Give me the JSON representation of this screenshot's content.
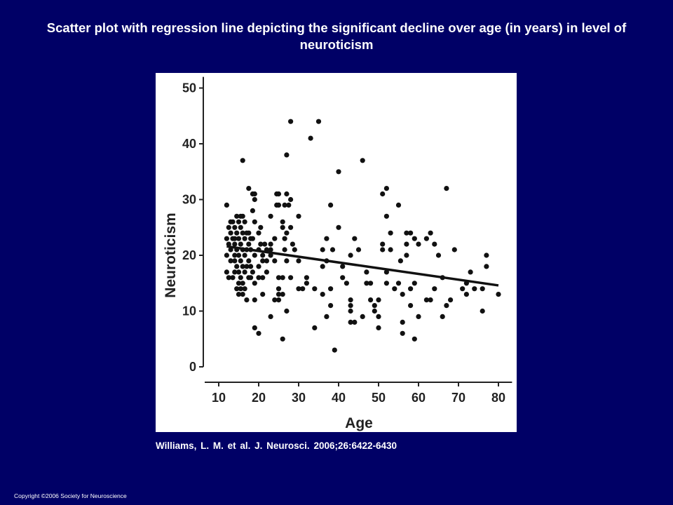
{
  "slide": {
    "title": "Scatter plot with regression line depicting the significant decline over age (in years) in level of neuroticism",
    "citation": "Williams, L. M. et al. J. Neurosci. 2006;26:6422-6430",
    "copyright": "Copyright ©2006 Society for Neuroscience"
  },
  "colors": {
    "background": "#000066",
    "panel": "#ffffff",
    "points": "#111111"
  },
  "chart_data": {
    "type": "scatter",
    "title": "",
    "xlabel": "Age",
    "ylabel": "Neuroticism",
    "xlim": [
      10,
      82
    ],
    "ylim": [
      0,
      52
    ],
    "xticks": [
      10,
      20,
      30,
      40,
      50,
      60,
      70,
      80
    ],
    "yticks": [
      0,
      10,
      20,
      30,
      40,
      50
    ],
    "grid": false,
    "legend": "none",
    "regression_line": {
      "x": [
        12,
        80
      ],
      "y": [
        21.6,
        14.6
      ]
    },
    "points": [
      [
        12,
        29
      ],
      [
        12,
        23
      ],
      [
        12,
        20
      ],
      [
        12,
        17
      ],
      [
        12.5,
        16
      ],
      [
        12.5,
        25
      ],
      [
        12.5,
        22
      ],
      [
        13,
        26
      ],
      [
        13,
        21
      ],
      [
        13,
        19
      ],
      [
        13,
        24
      ],
      [
        13.5,
        26
      ],
      [
        13.5,
        23
      ],
      [
        13.5,
        16
      ],
      [
        14,
        25
      ],
      [
        14,
        22
      ],
      [
        14,
        19
      ],
      [
        14,
        17
      ],
      [
        14,
        20
      ],
      [
        14,
        23
      ],
      [
        14.5,
        27
      ],
      [
        14.5,
        24
      ],
      [
        14.5,
        21
      ],
      [
        14.5,
        18
      ],
      [
        14.5,
        14
      ],
      [
        15,
        26
      ],
      [
        15,
        23
      ],
      [
        15,
        20
      ],
      [
        15,
        17
      ],
      [
        15,
        15
      ],
      [
        15,
        13
      ],
      [
        15.5,
        27
      ],
      [
        15.5,
        25
      ],
      [
        15.5,
        22
      ],
      [
        15.5,
        19
      ],
      [
        15.5,
        16
      ],
      [
        15.5,
        14
      ],
      [
        16,
        27
      ],
      [
        16,
        24
      ],
      [
        16,
        21
      ],
      [
        16,
        18
      ],
      [
        16,
        15
      ],
      [
        16,
        13
      ],
      [
        16,
        37
      ],
      [
        16.5,
        26
      ],
      [
        16.5,
        23
      ],
      [
        16.5,
        20
      ],
      [
        16.5,
        17
      ],
      [
        16.5,
        14
      ],
      [
        17,
        24
      ],
      [
        17,
        21
      ],
      [
        17,
        18
      ],
      [
        17,
        12
      ],
      [
        17.5,
        32
      ],
      [
        17.5,
        24
      ],
      [
        17.5,
        22
      ],
      [
        17.5,
        19
      ],
      [
        17.5,
        16
      ],
      [
        18,
        23
      ],
      [
        18,
        21
      ],
      [
        18,
        18
      ],
      [
        18,
        16
      ],
      [
        18.5,
        31
      ],
      [
        18.5,
        28
      ],
      [
        18.5,
        23
      ],
      [
        18.5,
        17
      ],
      [
        19,
        30
      ],
      [
        19,
        31
      ],
      [
        19,
        26
      ],
      [
        19,
        20
      ],
      [
        19,
        15
      ],
      [
        19,
        12
      ],
      [
        19,
        7
      ],
      [
        20,
        24
      ],
      [
        20,
        21
      ],
      [
        20,
        18
      ],
      [
        20,
        16
      ],
      [
        20,
        6
      ],
      [
        20.5,
        25
      ],
      [
        20.5,
        22
      ],
      [
        21,
        20
      ],
      [
        21,
        19
      ],
      [
        21,
        16
      ],
      [
        21,
        13
      ],
      [
        21.5,
        22
      ],
      [
        22,
        21
      ],
      [
        22,
        19
      ],
      [
        22,
        17
      ],
      [
        23,
        22
      ],
      [
        23,
        21
      ],
      [
        23,
        20
      ],
      [
        23,
        9
      ],
      [
        23,
        27
      ],
      [
        24,
        23
      ],
      [
        24,
        19
      ],
      [
        24,
        12
      ],
      [
        24.5,
        31
      ],
      [
        24.5,
        29
      ],
      [
        25,
        31
      ],
      [
        25,
        29
      ],
      [
        25,
        14
      ],
      [
        25,
        16
      ],
      [
        25,
        13
      ],
      [
        25,
        12
      ],
      [
        26,
        26
      ],
      [
        26,
        25
      ],
      [
        26,
        16
      ],
      [
        26,
        13
      ],
      [
        26,
        5
      ],
      [
        26.5,
        29
      ],
      [
        26.5,
        23
      ],
      [
        26.5,
        21
      ],
      [
        27,
        31
      ],
      [
        27,
        38
      ],
      [
        27,
        24
      ],
      [
        27,
        19
      ],
      [
        27,
        10
      ],
      [
        27.5,
        29
      ],
      [
        28,
        30
      ],
      [
        28,
        25
      ],
      [
        28,
        16
      ],
      [
        28,
        44
      ],
      [
        28.5,
        22
      ],
      [
        29,
        21
      ],
      [
        30,
        27
      ],
      [
        30,
        19
      ],
      [
        30,
        14
      ],
      [
        31,
        14
      ],
      [
        32,
        16
      ],
      [
        32,
        15
      ],
      [
        33,
        41
      ],
      [
        34,
        14
      ],
      [
        34,
        7
      ],
      [
        35,
        44
      ],
      [
        36,
        21
      ],
      [
        36,
        18
      ],
      [
        36,
        13
      ],
      [
        37,
        23
      ],
      [
        37,
        19
      ],
      [
        37,
        9
      ],
      [
        38,
        11
      ],
      [
        38,
        14
      ],
      [
        38,
        29
      ],
      [
        38.5,
        21
      ],
      [
        39,
        3
      ],
      [
        40,
        35
      ],
      [
        40,
        25
      ],
      [
        41,
        16
      ],
      [
        41,
        18
      ],
      [
        42,
        15
      ],
      [
        43,
        12
      ],
      [
        43,
        11
      ],
      [
        43,
        10
      ],
      [
        43,
        20
      ],
      [
        43,
        8
      ],
      [
        44,
        8
      ],
      [
        44,
        23
      ],
      [
        45,
        21
      ],
      [
        46,
        37
      ],
      [
        46,
        9
      ],
      [
        47,
        17
      ],
      [
        47,
        15
      ],
      [
        48,
        15
      ],
      [
        48,
        12
      ],
      [
        49,
        11
      ],
      [
        49,
        10
      ],
      [
        50,
        9
      ],
      [
        50,
        12
      ],
      [
        50,
        7
      ],
      [
        51,
        21
      ],
      [
        51,
        31
      ],
      [
        51,
        22
      ],
      [
        52,
        17
      ],
      [
        52,
        15
      ],
      [
        52,
        27
      ],
      [
        52,
        32
      ],
      [
        53,
        24
      ],
      [
        53,
        21
      ],
      [
        54,
        14
      ],
      [
        55,
        29
      ],
      [
        55,
        15
      ],
      [
        55.5,
        19
      ],
      [
        56,
        6
      ],
      [
        56,
        8
      ],
      [
        56,
        13
      ],
      [
        57,
        20
      ],
      [
        57,
        22
      ],
      [
        57,
        24
      ],
      [
        58,
        14
      ],
      [
        58,
        24
      ],
      [
        58,
        11
      ],
      [
        59,
        15
      ],
      [
        59,
        23
      ],
      [
        59,
        5
      ],
      [
        60,
        22
      ],
      [
        60,
        9
      ],
      [
        62,
        23
      ],
      [
        62,
        12
      ],
      [
        63,
        24
      ],
      [
        63,
        12
      ],
      [
        64,
        22
      ],
      [
        64,
        14
      ],
      [
        65,
        20
      ],
      [
        66,
        16
      ],
      [
        66,
        9
      ],
      [
        67,
        32
      ],
      [
        67,
        11
      ],
      [
        68,
        12
      ],
      [
        69,
        21
      ],
      [
        71,
        14
      ],
      [
        72,
        13
      ],
      [
        72,
        15
      ],
      [
        73,
        17
      ],
      [
        74,
        14
      ],
      [
        76,
        14
      ],
      [
        76,
        10
      ],
      [
        77,
        20
      ],
      [
        77,
        18
      ],
      [
        80,
        13
      ]
    ]
  }
}
